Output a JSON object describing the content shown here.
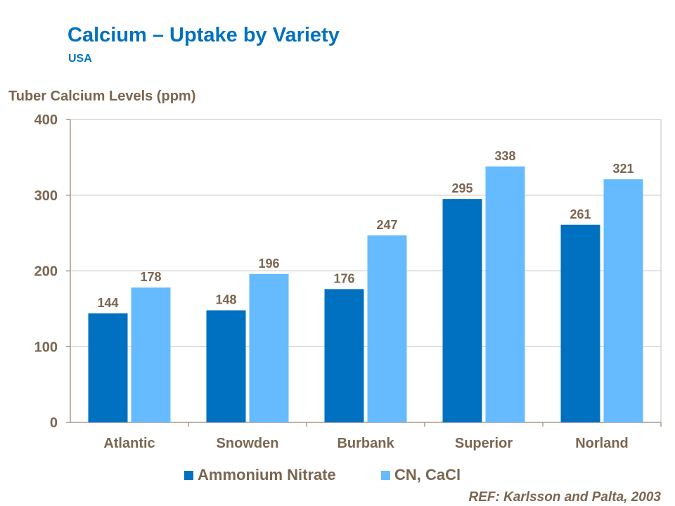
{
  "header": {
    "title": "Calcium – Uptake by Variety",
    "subtitle": "USA"
  },
  "reference": "REF: Karlsson and Palta, 2003",
  "colors": {
    "ammonium_nitrate": "#0070C0",
    "cn_cacl": "#66BBFF",
    "text": "#7A6650",
    "axis": "#A8998A",
    "grid": "#C8BFB5"
  },
  "chart_data": {
    "type": "bar",
    "title": "Calcium – Uptake by Variety",
    "subtitle": "USA",
    "ylabel": "Tuber Calcium Levels (ppm)",
    "xlabel": "",
    "ylim": [
      0,
      400
    ],
    "yticks": [
      "0",
      "100",
      "200",
      "300",
      "400"
    ],
    "grid": true,
    "legend": "bottom",
    "categories": [
      "Atlantic",
      "Snowden",
      "Burbank",
      "Superior",
      "Norland"
    ],
    "series": [
      {
        "name": "Ammonium Nitrate",
        "values": [
          144,
          148,
          176,
          295,
          261
        ]
      },
      {
        "name": "CN, CaCl",
        "values": [
          178,
          196,
          247,
          338,
          321
        ]
      }
    ]
  }
}
